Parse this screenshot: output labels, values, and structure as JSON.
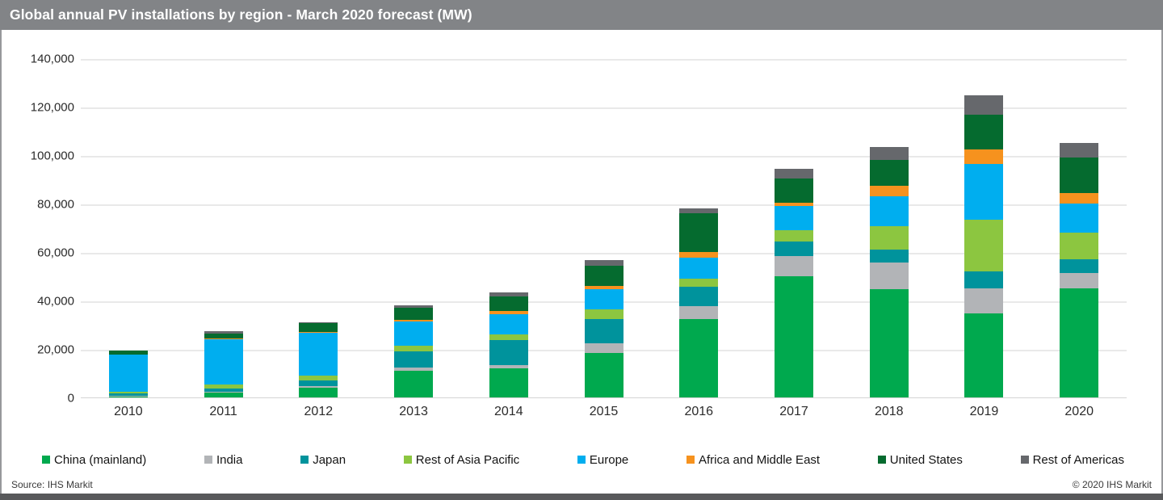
{
  "title": "Global annual PV installations by region - March 2020 forecast (MW)",
  "footer": {
    "source": "Source: IHS Markit",
    "copyright": "© 2020 IHS Markit"
  },
  "colors": {
    "titlebar_background": "#828487",
    "title_text": "#ffffff",
    "bottom_bar": "#58595b",
    "gridline": "#e9e9e9",
    "axis_text": "#2b2b2b"
  },
  "chart_data": {
    "type": "bar",
    "stacked": true,
    "title": "Global annual PV installations by region - March 2020 forecast (MW)",
    "xlabel": "",
    "ylabel": "MW",
    "ylim": [
      0,
      140000
    ],
    "grid": true,
    "legend_position": "bottom",
    "y_ticks": [
      "0",
      "20,000",
      "40,000",
      "60,000",
      "80,000",
      "100,000",
      "120,000",
      "140,000"
    ],
    "y_tick_values": [
      0,
      20000,
      40000,
      60000,
      80000,
      100000,
      120000,
      140000
    ],
    "categories": [
      "2010",
      "2011",
      "2012",
      "2013",
      "2014",
      "2015",
      "2016",
      "2017",
      "2018",
      "2019",
      "2020"
    ],
    "series": [
      {
        "name": "China (mainland)",
        "color": "#00a94e",
        "values": [
          500,
          2000,
          4100,
          11100,
          12000,
          18300,
          32400,
          50000,
          44600,
          34700,
          45000
        ]
      },
      {
        "name": "India",
        "color": "#b2b4b7",
        "values": [
          100,
          400,
          700,
          1100,
          1350,
          3900,
          5300,
          8500,
          11100,
          10300,
          6500
        ]
      },
      {
        "name": "Japan",
        "color": "#00939c",
        "values": [
          1000,
          1400,
          2200,
          6700,
          10200,
          10200,
          8000,
          6000,
          5300,
          7000,
          5500
        ]
      },
      {
        "name": "Rest of Asia Pacific",
        "color": "#8cc640",
        "values": [
          800,
          1700,
          1900,
          2400,
          2550,
          4000,
          3300,
          4500,
          9800,
          21300,
          11100
        ]
      },
      {
        "name": "Europe",
        "color": "#00aeef",
        "values": [
          15200,
          18500,
          17700,
          10100,
          8100,
          8200,
          8700,
          10000,
          12200,
          22900,
          11900
        ]
      },
      {
        "name": "Africa and Middle East",
        "color": "#f6921e",
        "values": [
          100,
          300,
          500,
          550,
          1350,
          1450,
          2450,
          1400,
          4500,
          6300,
          4200
        ]
      },
      {
        "name": "United States",
        "color": "#056b2f",
        "values": [
          1500,
          2100,
          3500,
          5200,
          6100,
          8300,
          15900,
          9800,
          10400,
          14200,
          14700
        ]
      },
      {
        "name": "Rest of Americas",
        "color": "#66686c",
        "values": [
          300,
          800,
          400,
          900,
          1650,
          2200,
          1900,
          4100,
          5500,
          8100,
          6100
        ]
      }
    ]
  }
}
